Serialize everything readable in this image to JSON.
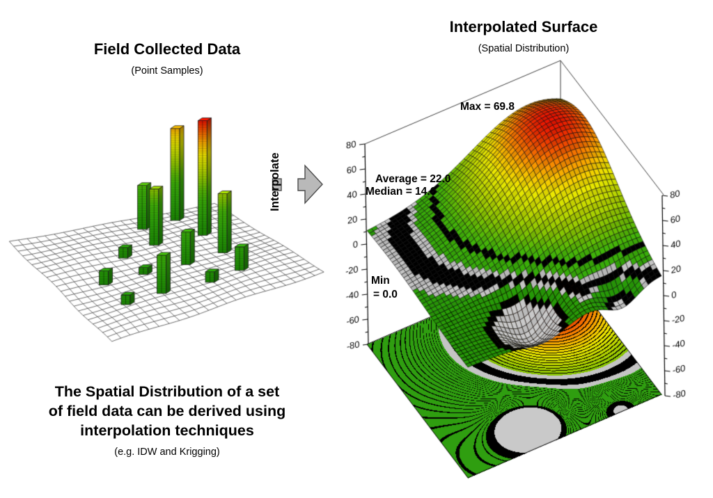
{
  "arrow": {
    "label": "Interpolate",
    "fill": "#b9b9b9",
    "stroke": "#4b4b4b"
  },
  "footer": {
    "lines": [
      "The Spatial Distribution of a set",
      "of field data can be derived using",
      "interpolation techniques"
    ],
    "subtitle": "(e.g. IDW and Krigging)"
  },
  "palette": {
    "floor_green": "#2f9e10",
    "gray_zone": "#c9c9c9",
    "mesh_line": "#000000",
    "frame_line": "#3c3c3c"
  },
  "color_ramp": [
    [
      0,
      "#1c8a04"
    ],
    [
      13,
      "#2da30a"
    ],
    [
      25,
      "#41b309"
    ],
    [
      33,
      "#85c402"
    ],
    [
      41,
      "#c0d800"
    ],
    [
      48,
      "#ece800"
    ],
    [
      54,
      "#f6c000"
    ],
    [
      59,
      "#f78c00"
    ],
    [
      64,
      "#ef5200"
    ],
    [
      70,
      "#e91100"
    ]
  ],
  "chart_data": [
    {
      "type": "bar",
      "variant": "3d-point-sample-bars",
      "title": "Field Collected Data",
      "subtitle": "(Point Samples)",
      "grid_divisions": 22,
      "value_range": [
        0,
        80
      ],
      "bars": [
        {
          "u": 0.78,
          "v": 0.32,
          "value": 69.8
        },
        {
          "u": 0.76,
          "v": 0.1,
          "value": 56.0
        },
        {
          "u": 0.59,
          "v": 0.12,
          "value": 26.7
        },
        {
          "u": 0.55,
          "v": 0.3,
          "value": 34.3
        },
        {
          "u": 0.77,
          "v": 0.52,
          "value": 36.0
        },
        {
          "u": 0.58,
          "v": 0.55,
          "value": 19.9
        },
        {
          "u": 0.36,
          "v": 0.75,
          "value": 23.3
        },
        {
          "u": 0.73,
          "v": 0.75,
          "value": 14.4
        },
        {
          "u": 0.38,
          "v": 0.35,
          "value": 6.4
        },
        {
          "u": 0.2,
          "v": 0.53,
          "value": 8.5
        },
        {
          "u": 0.38,
          "v": 0.53,
          "value": 4.2
        },
        {
          "u": 0.58,
          "v": 0.77,
          "value": 6.4
        },
        {
          "u": 0.19,
          "v": 0.75,
          "value": 5.9
        }
      ]
    },
    {
      "type": "surface-3d",
      "title": "Interpolated Surface",
      "subtitle": "(Spatial Distribution)",
      "stats": {
        "max": 69.8,
        "average": 22.0,
        "median": 14.6,
        "min": 0.0
      },
      "annotations": {
        "max_label": "Max = 69.8",
        "average_label": "Average = 22.0",
        "median_label": "Median = 14.6",
        "min_label_line1": "Min",
        "min_label_line2": "= 0.0"
      },
      "z_axis": {
        "min": -80,
        "max": 80,
        "major_tick": 20,
        "minor_tick": 10,
        "ticks": [
          80,
          60,
          40,
          20,
          0,
          -20,
          -40,
          -60,
          -80
        ]
      },
      "surface_model": {
        "base": {
          "offset": 9.5,
          "amp": 3.0,
          "fu": 4.0,
          "pu": 0.5,
          "fv": 5.0,
          "pv": 0.3
        },
        "peak": {
          "u": 0.84,
          "v": 0.24,
          "su": 0.3,
          "sv": 0.32,
          "amp": 62.3
        },
        "dips": [
          {
            "u": 0.4,
            "v": 0.85,
            "s": 0.1,
            "amp": 22
          },
          {
            "u": 0.8,
            "v": 0.97,
            "s": 0.08,
            "amp": 13
          }
        ]
      }
    }
  ]
}
